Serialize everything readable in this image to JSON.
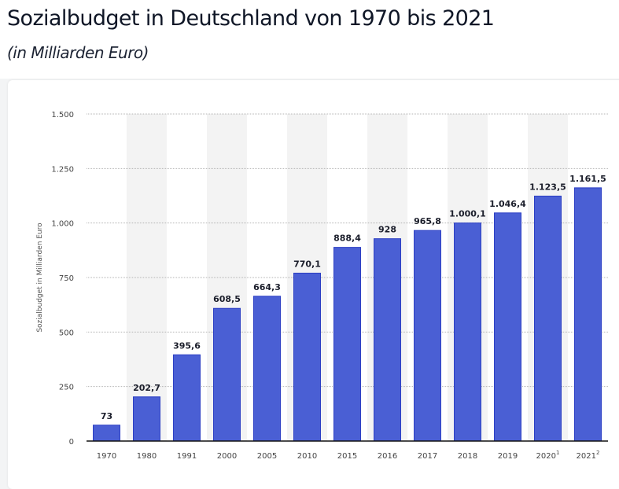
{
  "header": {
    "title": "Sozialbudget in Deutschland von 1970 bis 2021",
    "subtitle": "(in Milliarden Euro)"
  },
  "colors": {
    "bar": "#4a5fd4",
    "bar_border": "#2c3fc4",
    "band": "#f3f3f3",
    "grid": "#b5b5b5"
  },
  "chart_data": {
    "type": "bar",
    "title": "Sozialbudget in Deutschland von 1970 bis 2021",
    "subtitle": "(in Milliarden Euro)",
    "xlabel": "",
    "ylabel": "Sozialbudget in Milliarden Euro",
    "categories": [
      "1970",
      "1980",
      "1991",
      "2000",
      "2005",
      "2010",
      "2015",
      "2016",
      "2017",
      "2018",
      "2019",
      "2020",
      "2021"
    ],
    "category_footnotes": [
      "",
      "",
      "",
      "",
      "",
      "",
      "",
      "",
      "",
      "",
      "",
      "1",
      "2"
    ],
    "values": [
      73,
      202.7,
      395.6,
      608.5,
      664.3,
      770.1,
      888.4,
      928,
      965.8,
      1000.1,
      1046.4,
      1123.5,
      1161.5
    ],
    "value_labels": [
      "73",
      "202,7",
      "395,6",
      "608,5",
      "664,3",
      "770,1",
      "888,4",
      "928",
      "965,8",
      "1.000,1",
      "1.046,4",
      "1.123,5",
      "1.161,5"
    ],
    "ylim": [
      0,
      1500
    ],
    "yticks": [
      0,
      250,
      500,
      750,
      1000,
      1250,
      1500
    ],
    "ytick_labels": [
      "0",
      "250",
      "500",
      "750",
      "1.000",
      "1.250",
      "1.500"
    ],
    "grid": true,
    "legend": "none"
  }
}
